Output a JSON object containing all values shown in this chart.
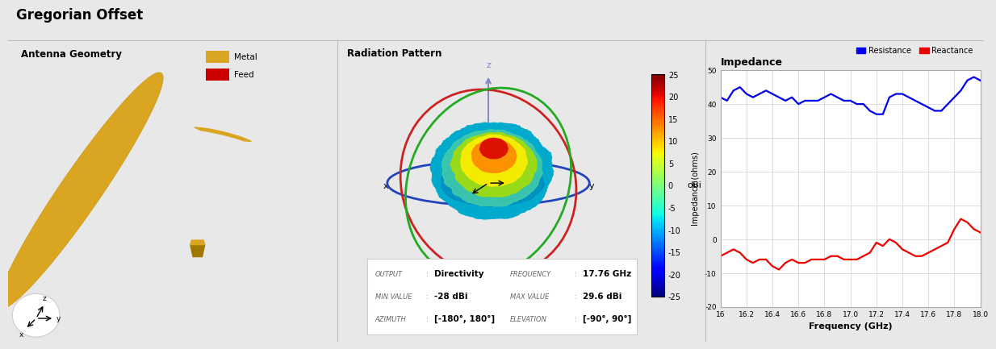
{
  "title": "Gregorian Offset",
  "title_fontsize": 12,
  "bg_color": "#e8e8e8",
  "panel_bg": "#e8e8e8",
  "ant_title": "Antenna Geometry",
  "legend_metal_color": "#DAA520",
  "legend_metal_dark": "#A07800",
  "legend_feed_color": "#CC0000",
  "rad_title": "Radiation Pattern",
  "rad_info": {
    "output_label": "OUTPUT",
    "output_val": "Directivity",
    "freq_label": "FREQUENCY",
    "freq_val": "17.76 GHz",
    "min_label": "MIN VALUE",
    "min_val": "-28 dBi",
    "max_label": "MAX VALUE",
    "max_val": "29.6 dBi",
    "az_label": "AZIMUTH",
    "az_val": "[-180°, 180°]",
    "el_label": "ELEVATION",
    "el_val": "[-90°, 90°]"
  },
  "imp_title": "Impedance",
  "imp_xlabel": "Frequency (GHz)",
  "imp_ylabel": "Impedance (ohms)",
  "freq_start": 16.0,
  "freq_end": 18.0,
  "resistance_color": "#0000EE",
  "reactance_color": "#EE0000",
  "ylim": [
    -20,
    50
  ],
  "yticks": [
    -20,
    -10,
    0,
    10,
    20,
    30,
    40,
    50
  ],
  "xticks": [
    16.0,
    16.2,
    16.4,
    16.6,
    16.8,
    17.0,
    17.2,
    17.4,
    17.6,
    17.8,
    18.0
  ],
  "resistance_x": [
    16.0,
    16.05,
    16.1,
    16.15,
    16.2,
    16.25,
    16.3,
    16.35,
    16.4,
    16.45,
    16.5,
    16.55,
    16.6,
    16.65,
    16.7,
    16.75,
    16.8,
    16.85,
    16.9,
    16.95,
    17.0,
    17.05,
    17.1,
    17.15,
    17.2,
    17.25,
    17.3,
    17.35,
    17.4,
    17.45,
    17.5,
    17.55,
    17.6,
    17.65,
    17.7,
    17.75,
    17.8,
    17.85,
    17.9,
    17.95,
    18.0
  ],
  "resistance_y": [
    42,
    41,
    44,
    45,
    43,
    42,
    43,
    44,
    43,
    42,
    41,
    42,
    40,
    41,
    41,
    41,
    42,
    43,
    42,
    41,
    41,
    40,
    40,
    38,
    37,
    37,
    42,
    43,
    43,
    42,
    41,
    40,
    39,
    38,
    38,
    40,
    42,
    44,
    47,
    48,
    47
  ],
  "reactance_x": [
    16.0,
    16.05,
    16.1,
    16.15,
    16.2,
    16.25,
    16.3,
    16.35,
    16.4,
    16.45,
    16.5,
    16.55,
    16.6,
    16.65,
    16.7,
    16.75,
    16.8,
    16.85,
    16.9,
    16.95,
    17.0,
    17.05,
    17.1,
    17.15,
    17.2,
    17.25,
    17.3,
    17.35,
    17.4,
    17.45,
    17.5,
    17.55,
    17.6,
    17.65,
    17.7,
    17.75,
    17.8,
    17.85,
    17.9,
    17.95,
    18.0
  ],
  "reactance_y": [
    -5,
    -4,
    -3,
    -4,
    -6,
    -7,
    -6,
    -6,
    -8,
    -9,
    -7,
    -6,
    -7,
    -7,
    -6,
    -6,
    -6,
    -5,
    -5,
    -6,
    -6,
    -6,
    -5,
    -4,
    -1,
    -2,
    0,
    -1,
    -3,
    -4,
    -5,
    -5,
    -4,
    -3,
    -2,
    -1,
    3,
    6,
    5,
    3,
    2
  ]
}
